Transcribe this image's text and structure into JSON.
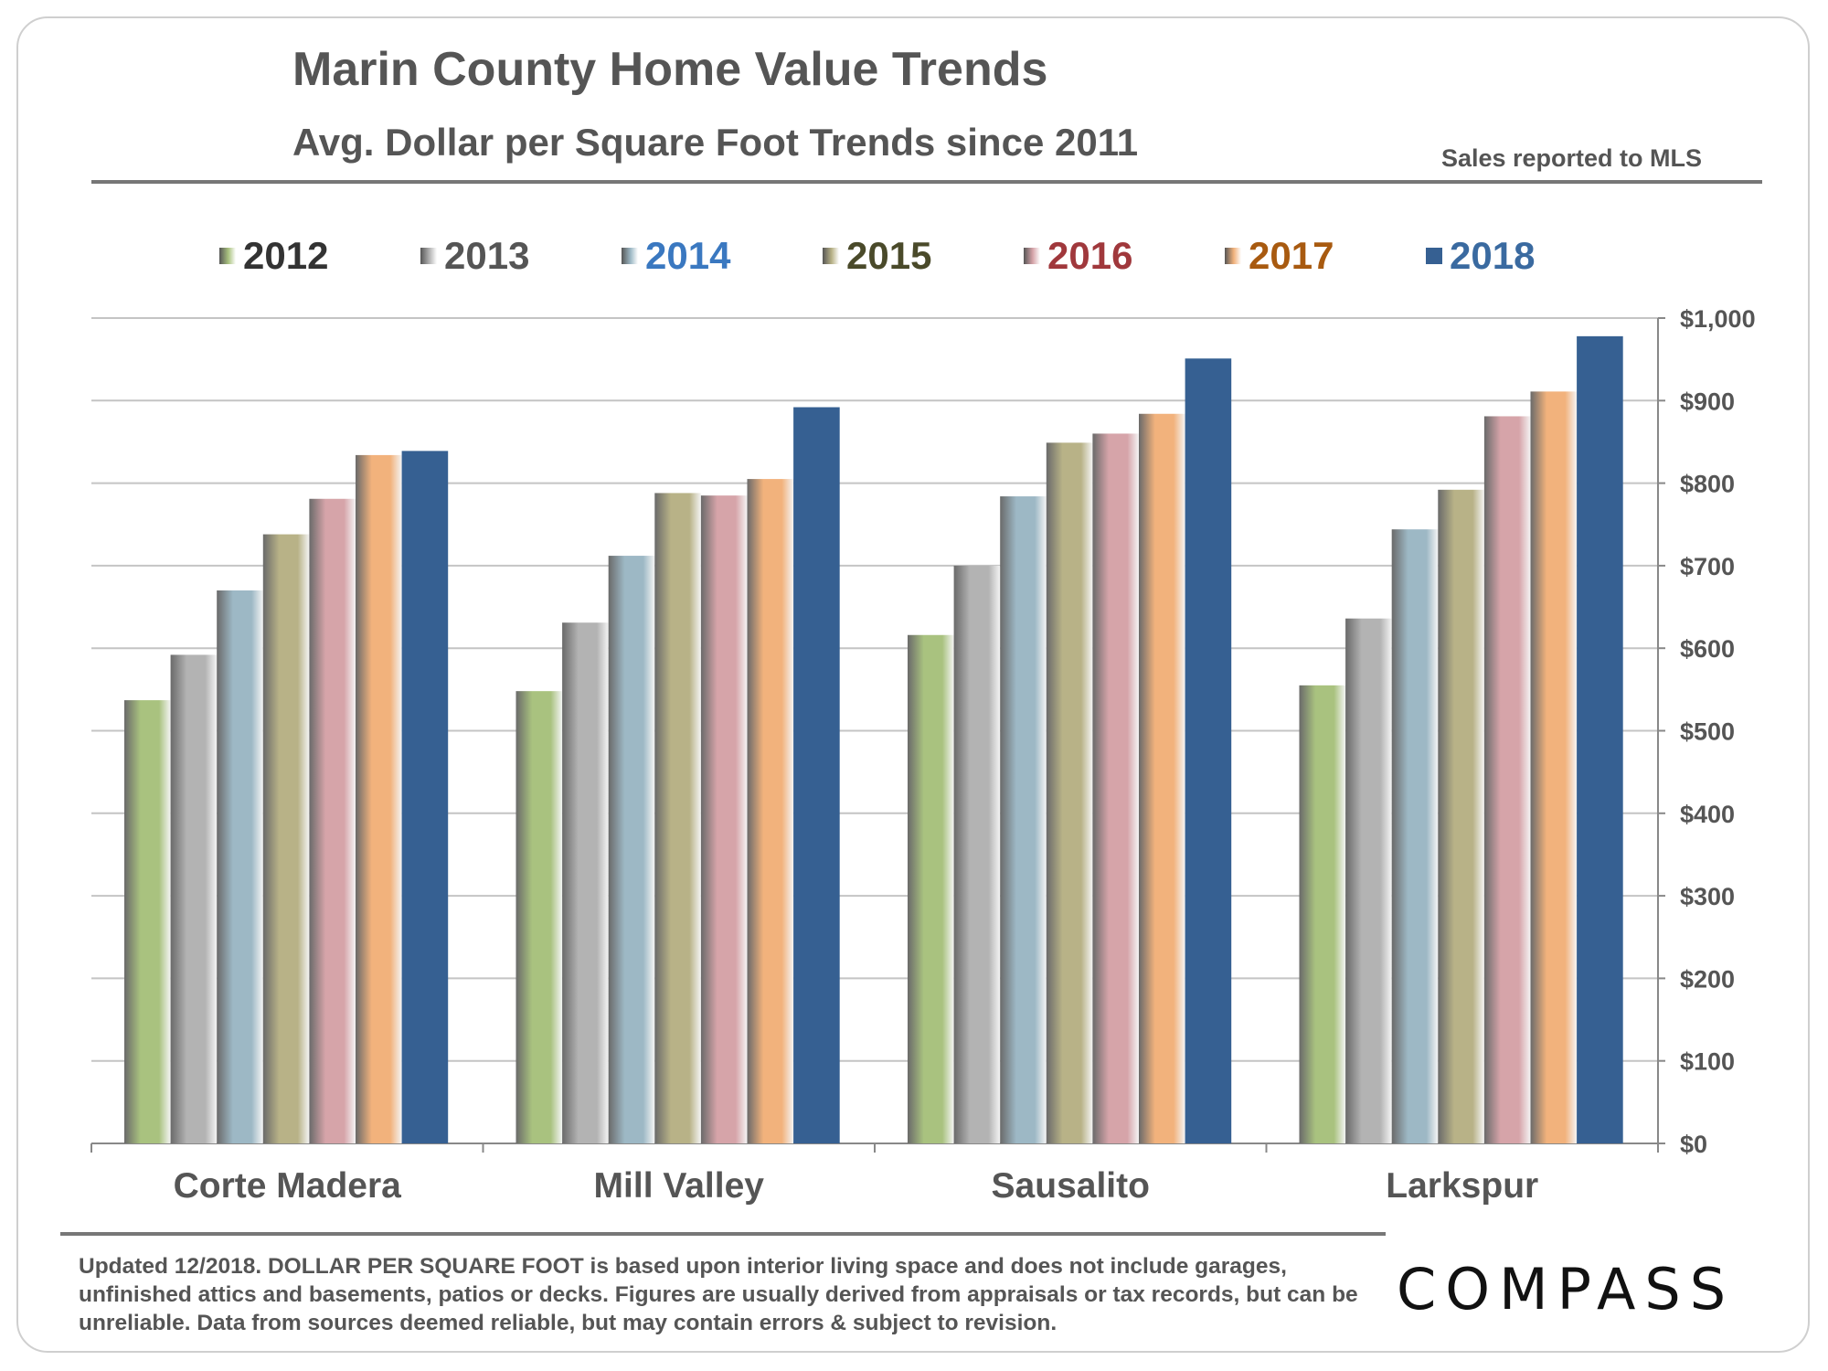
{
  "header": {
    "title": "Marin County Home Value Trends",
    "subtitle": "Avg. Dollar per Square Foot Trends since 2011",
    "note": "Sales reported to MLS"
  },
  "chart_data": {
    "type": "bar",
    "categories": [
      "Corte Madera",
      "Mill Valley",
      "Sausalito",
      "Larkspur"
    ],
    "series": [
      {
        "name": "2012",
        "color": "#a9c27f",
        "label_color": "#333333",
        "values": [
          537,
          548,
          616,
          555
        ]
      },
      {
        "name": "2013",
        "color": "#b3b3b3",
        "label_color": "#555555",
        "values": [
          592,
          631,
          700,
          636
        ]
      },
      {
        "name": "2014",
        "color": "#9db8c5",
        "label_color": "#3a78c0",
        "values": [
          670,
          712,
          784,
          744
        ]
      },
      {
        "name": "2015",
        "color": "#b8b287",
        "label_color": "#4a4a2a",
        "values": [
          738,
          788,
          849,
          792
        ]
      },
      {
        "name": "2016",
        "color": "#d6a4a9",
        "label_color": "#a0383c",
        "values": [
          781,
          785,
          860,
          881
        ]
      },
      {
        "name": "2017",
        "color": "#f2b27c",
        "label_color": "#a85a10",
        "values": [
          834,
          805,
          884,
          911
        ]
      },
      {
        "name": "2018",
        "color": "#366092",
        "label_color": "#3a6aa0",
        "values": [
          839,
          892,
          951,
          978
        ]
      }
    ],
    "ylim": [
      0,
      1000
    ],
    "yticks": [
      "$0",
      "$100",
      "$200",
      "$300",
      "$400",
      "$500",
      "$600",
      "$700",
      "$800",
      "$900",
      "$1,000"
    ],
    "ytick_values": [
      0,
      100,
      200,
      300,
      400,
      500,
      600,
      700,
      800,
      900,
      1000
    ],
    "y_axis_side": "right",
    "grid": true,
    "legend_position": "top"
  },
  "footer": {
    "text": "Updated 12/2018. DOLLAR PER SQUARE FOOT is based upon interior living space and does not include garages, unfinished attics and basements, patios or decks. Figures are usually derived from appraisals or tax records, but can be unreliable. Data from sources deemed reliable, but may contain errors & subject to revision.",
    "logo": "COMPASS"
  }
}
